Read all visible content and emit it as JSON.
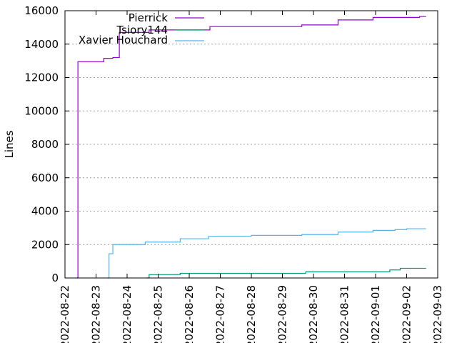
{
  "chart_data": {
    "type": "line",
    "ylabel": "Lines",
    "xlabel": "",
    "ylim": [
      0,
      16000
    ],
    "y_ticks": [
      0,
      2000,
      4000,
      6000,
      8000,
      10000,
      12000,
      14000,
      16000
    ],
    "x_ticks": [
      "2022-08-22",
      "2022-08-23",
      "2022-08-24",
      "2022-08-25",
      "2022-08-26",
      "2022-08-27",
      "2022-08-28",
      "2022-08-29",
      "2022-08-30",
      "2022-08-31",
      "2022-09-01",
      "2022-09-02",
      "2022-09-03"
    ],
    "xlim": [
      "2022-08-22",
      "2022-09-03"
    ],
    "grid": "horizontal",
    "legend_position": "top-left",
    "step": true,
    "series": [
      {
        "name": "Pierrick",
        "color": "#9400d3",
        "points": [
          [
            "2022-08-22T09:00",
            0
          ],
          [
            "2022-08-22T10:00",
            12950
          ],
          [
            "2022-08-23T06:00",
            13150
          ],
          [
            "2022-08-23T13:00",
            13200
          ],
          [
            "2022-08-23T18:00",
            14700
          ],
          [
            "2022-08-24T17:00",
            14850
          ],
          [
            "2022-08-26T16:00",
            15050
          ],
          [
            "2022-08-29T15:00",
            15150
          ],
          [
            "2022-08-30T19:00",
            15450
          ],
          [
            "2022-08-31T22:00",
            15600
          ],
          [
            "2022-09-02T10:00",
            15650
          ]
        ],
        "end": "2022-09-02T15:00"
      },
      {
        "name": "Tsiory144",
        "color": "#009e73",
        "points": [
          [
            "2022-08-24T15:00",
            0
          ],
          [
            "2022-08-24T17:00",
            200
          ],
          [
            "2022-08-25T17:00",
            280
          ],
          [
            "2022-08-29T18:00",
            370
          ],
          [
            "2022-09-01T11:00",
            480
          ],
          [
            "2022-09-01T19:00",
            580
          ]
        ],
        "end": "2022-09-02T15:00"
      },
      {
        "name": "Xavier Houchard",
        "color": "#56b4e9",
        "points": [
          [
            "2022-08-23T09:00",
            0
          ],
          [
            "2022-08-23T10:00",
            1450
          ],
          [
            "2022-08-23T13:00",
            2000
          ],
          [
            "2022-08-24T14:00",
            2150
          ],
          [
            "2022-08-25T17:00",
            2350
          ],
          [
            "2022-08-26T15:00",
            2500
          ],
          [
            "2022-08-28T00:00",
            2550
          ],
          [
            "2022-08-29T15:00",
            2600
          ],
          [
            "2022-08-30T19:00",
            2750
          ],
          [
            "2022-08-31T22:00",
            2850
          ],
          [
            "2022-09-01T15:00",
            2900
          ],
          [
            "2022-09-02T00:00",
            2950
          ]
        ],
        "end": "2022-09-02T15:00"
      }
    ]
  }
}
